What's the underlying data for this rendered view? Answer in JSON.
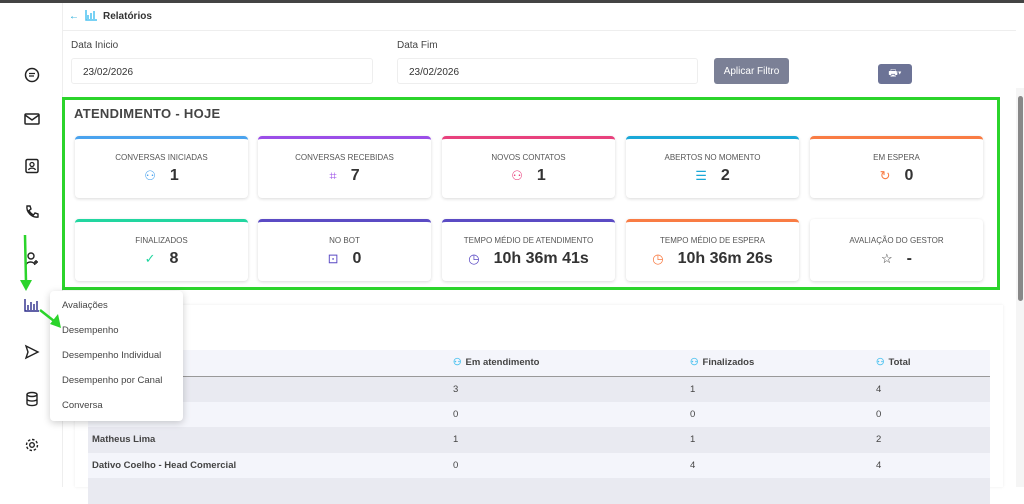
{
  "header": {
    "title": "Relatórios",
    "back_icon": "arrow-left-icon",
    "icon": "bar-chart-icon"
  },
  "filters": {
    "start_label": "Data Inicio",
    "start_value": "23/02/2026",
    "end_label": "Data Fim",
    "end_value": "23/02/2026",
    "apply_label": "Aplicar Filtro",
    "print_icon": "printer-icon"
  },
  "sidebar": [
    "chat-icon",
    "mail-icon",
    "contacts-icon",
    "phone-icon",
    "user-add-icon",
    "bar-chart-icon",
    "send-icon",
    "database-icon",
    "gear-icon"
  ],
  "section": {
    "title": "ATENDIMENTO - HOJE"
  },
  "cards": [
    {
      "title": "CONVERSAS INICIADAS",
      "value": "1",
      "color": "#4aa3ee",
      "icon": "user-check-icon",
      "icon_glyph": "⚇"
    },
    {
      "title": "CONVERSAS RECEBIDAS",
      "value": "7",
      "color": "#9b4ee8",
      "icon": "crop-icon",
      "icon_glyph": "⌗"
    },
    {
      "title": "NOVOS CONTATOS",
      "value": "1",
      "color": "#e8417d",
      "icon": "user-plus-icon",
      "icon_glyph": "⚇"
    },
    {
      "title": "ABERTOS NO MOMENTO",
      "value": "2",
      "color": "#1aa8d8",
      "icon": "chat-icon",
      "icon_glyph": "☰"
    },
    {
      "title": "EM ESPERA",
      "value": "0",
      "color": "#f97c44",
      "icon": "refresh-icon",
      "icon_glyph": "↻"
    },
    {
      "title": "FINALIZADOS",
      "value": "8",
      "color": "#22d6a0",
      "icon": "chat-check-icon",
      "icon_glyph": "✓"
    },
    {
      "title": "NO BOT",
      "value": "0",
      "color": "#5b4bc4",
      "icon": "robot-icon",
      "icon_glyph": "⊡"
    },
    {
      "title": "TEMPO MÉDIO DE ATENDIMENTO",
      "value": "10h 36m 41s",
      "color": "#5b4bc4",
      "icon": "clock-icon",
      "icon_glyph": "◷"
    },
    {
      "title": "TEMPO MÉDIO DE ESPERA",
      "value": "10h 36m 26s",
      "color": "#f97c44",
      "icon": "clock-icon",
      "icon_glyph": "◷"
    },
    {
      "title": "AVALIAÇÃO DO GESTOR",
      "value": "-",
      "color": "#333333",
      "icon": "star-icon",
      "icon_glyph": "☆"
    }
  ],
  "table": {
    "headers": [
      "",
      "Em atendimento",
      "Finalizados",
      "Total"
    ],
    "rows": [
      [
        "",
        "3",
        "1",
        "4"
      ],
      [
        "",
        "0",
        "0",
        "0"
      ],
      [
        "Matheus Lima",
        "1",
        "1",
        "2"
      ],
      [
        "Dativo Coelho - Head Comercial",
        "0",
        "4",
        "4"
      ],
      [
        "",
        "",
        "",
        ""
      ]
    ]
  },
  "menu": [
    "Avaliações",
    "Desempenho",
    "Desempenho Individual",
    "Desempenho por Canal",
    "Conversa"
  ]
}
